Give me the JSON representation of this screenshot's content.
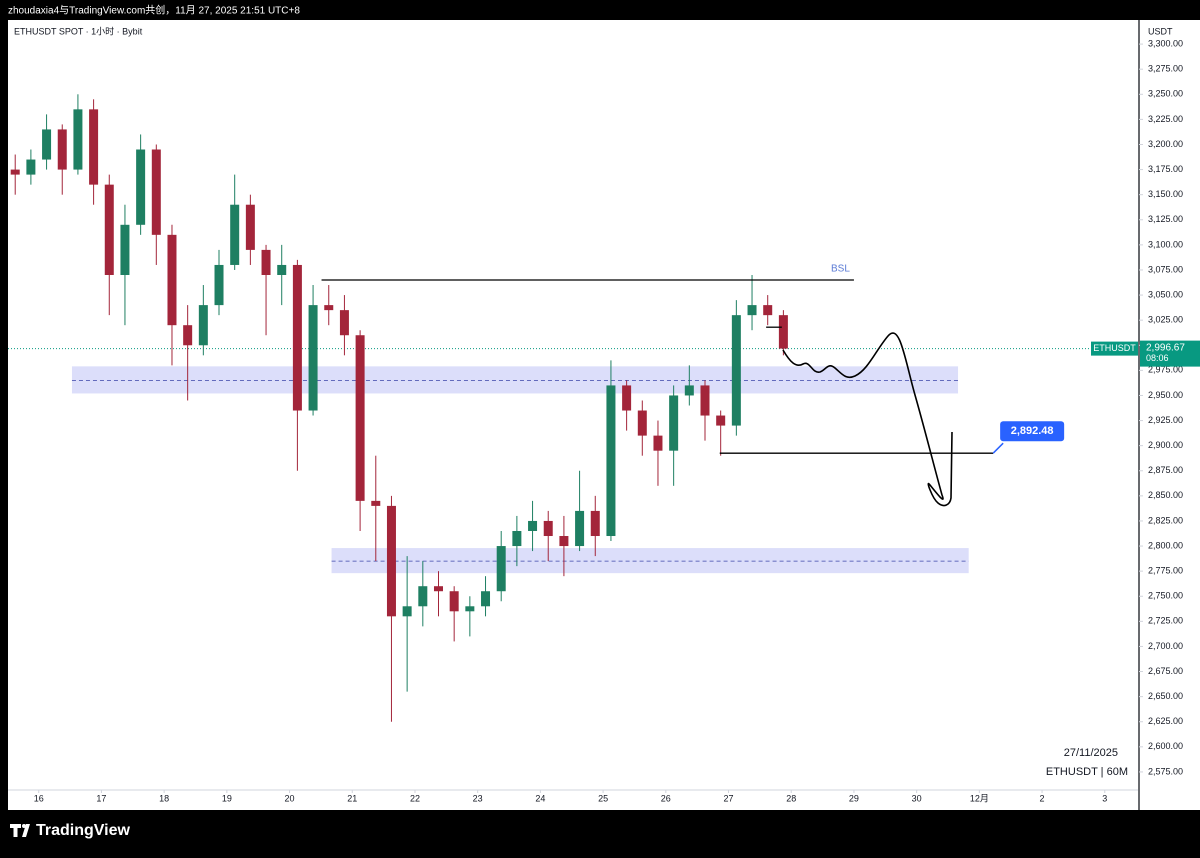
{
  "header": {
    "text": "zhoudaxia4与TradingView.com共创，11月 27, 2025 21:51 UTC+8"
  },
  "footer": {
    "brand": "TradingView"
  },
  "chart_data": {
    "type": "candlestick",
    "title": "ETHUSDT SPOT · 1小时 · Bybit",
    "y_axis_label": "USDT",
    "watermark_date": "27/11/2025",
    "watermark_symbol": "ETHUSDT | 60M",
    "up_color": "#1e7f62",
    "down_color": "#a3253a",
    "x": [
      15.625,
      15.875,
      16.125,
      16.375,
      16.625,
      16.875,
      17.125,
      17.375,
      17.625,
      17.875,
      18.125,
      18.375,
      18.625,
      18.875,
      19.125,
      19.375,
      19.625,
      19.875,
      20.125,
      20.375,
      20.625,
      20.875,
      21.125,
      21.375,
      21.625,
      21.875,
      22.125,
      22.375,
      22.625,
      22.875,
      23.125,
      23.375,
      23.625,
      23.875,
      24.125,
      24.375,
      24.625,
      24.875,
      25.125,
      25.375,
      25.625,
      25.875,
      26.125,
      26.375,
      26.625,
      26.875,
      27.125,
      27.375,
      27.625,
      27.875
    ],
    "open": [
      3175,
      3170,
      3185,
      3215,
      3175,
      3235,
      3160,
      3070,
      3120,
      3195,
      3110,
      3020,
      3000,
      3040,
      3080,
      3140,
      3095,
      3070,
      3080,
      2935,
      3040,
      3035,
      3010,
      2845,
      2840,
      2730,
      2740,
      2760,
      2755,
      2735,
      2740,
      2755,
      2800,
      2815,
      2825,
      2810,
      2800,
      2835,
      2810,
      2960,
      2935,
      2910,
      2895,
      2950,
      2960,
      2930,
      2920,
      3030,
      3040,
      3030
    ],
    "high": [
      3190,
      3195,
      3230,
      3220,
      3250,
      3245,
      3170,
      3140,
      3210,
      3200,
      3120,
      3040,
      3060,
      3095,
      3170,
      3150,
      3100,
      3100,
      3085,
      3060,
      3060,
      3050,
      3015,
      2890,
      2850,
      2790,
      2785,
      2775,
      2760,
      2750,
      2770,
      2815,
      2830,
      2845,
      2835,
      2830,
      2875,
      2850,
      2985,
      2965,
      2945,
      2925,
      2960,
      2980,
      2965,
      2935,
      3045,
      3070,
      3050,
      3035
    ],
    "low": [
      3150,
      3160,
      3175,
      3150,
      3170,
      3140,
      3030,
      3020,
      3110,
      3080,
      2980,
      2945,
      2990,
      3030,
      3075,
      3080,
      3010,
      3040,
      2875,
      2930,
      3020,
      2990,
      2815,
      2785,
      2625,
      2655,
      2720,
      2730,
      2705,
      2710,
      2730,
      2745,
      2780,
      2795,
      2785,
      2770,
      2795,
      2790,
      2805,
      2915,
      2890,
      2860,
      2860,
      2940,
      2905,
      2890,
      2910,
      3015,
      3020,
      2990
    ],
    "close": [
      3170,
      3185,
      3215,
      3175,
      3235,
      3160,
      3070,
      3120,
      3195,
      3110,
      3020,
      3000,
      3040,
      3080,
      3140,
      3095,
      3070,
      3080,
      2935,
      3040,
      3035,
      3010,
      2845,
      2840,
      2730,
      2740,
      2760,
      2755,
      2735,
      2740,
      2755,
      2800,
      2815,
      2825,
      2810,
      2800,
      2835,
      2810,
      2960,
      2935,
      2910,
      2895,
      2950,
      2960,
      2930,
      2920,
      3030,
      3040,
      3030,
      2996.67
    ],
    "xlim": [
      15.51,
      33.53
    ],
    "ylim": [
      2557,
      3324
    ],
    "xticks": [
      16,
      17,
      18,
      19,
      20,
      21,
      22,
      23,
      24,
      25,
      26,
      27,
      28,
      29,
      30,
      {
        "value": 31,
        "label": "12月"
      },
      {
        "value": 32,
        "label": "2"
      },
      {
        "value": 33,
        "label": "3"
      }
    ],
    "yticks": [
      {
        "value": 2575,
        "label": "2,575.00"
      },
      {
        "value": 2600,
        "label": "2,600.00"
      },
      {
        "value": 2625,
        "label": "2,625.00"
      },
      {
        "value": 2650,
        "label": "2,650.00"
      },
      {
        "value": 2675,
        "label": "2,675.00"
      },
      {
        "value": 2700,
        "label": "2,700.00"
      },
      {
        "value": 2725,
        "label": "2,725.00"
      },
      {
        "value": 2750,
        "label": "2,750.00"
      },
      {
        "value": 2775,
        "label": "2,775.00"
      },
      {
        "value": 2800,
        "label": "2,800.00"
      },
      {
        "value": 2825,
        "label": "2,825.00"
      },
      {
        "value": 2850,
        "label": "2,850.00"
      },
      {
        "value": 2875,
        "label": "2,875.00"
      },
      {
        "value": 2900,
        "label": "2,900.00"
      },
      {
        "value": 2925,
        "label": "2,925.00"
      },
      {
        "value": 2950,
        "label": "2,950.00"
      },
      {
        "value": 2975,
        "label": "2,975.00"
      },
      {
        "value": 3000,
        "label": "3,000.00"
      },
      {
        "value": 3025,
        "label": "3,025.00"
      },
      {
        "value": 3050,
        "label": "3,050.00"
      },
      {
        "value": 3075,
        "label": "3,075.00"
      },
      {
        "value": 3100,
        "label": "3,100.00"
      },
      {
        "value": 3125,
        "label": "3,125.00"
      },
      {
        "value": 3150,
        "label": "3,150.00"
      },
      {
        "value": 3175,
        "label": "3,175.00"
      },
      {
        "value": 3200,
        "label": "3,200.00"
      },
      {
        "value": 3225,
        "label": "3,225.00"
      },
      {
        "value": 3250,
        "label": "3,250.00"
      },
      {
        "value": 3275,
        "label": "3,275.00"
      },
      {
        "value": 3300,
        "label": "3,300.00"
      }
    ],
    "grid": false,
    "zones": [
      {
        "low": 2952,
        "high": 2979,
        "mid": 2965,
        "from": 16.53,
        "to": 30.66,
        "color": "#c9cdf7"
      },
      {
        "low": 2773,
        "high": 2798,
        "mid": 2785,
        "from": 20.67,
        "to": 30.83,
        "color": "#c9cdf7"
      }
    ],
    "levels": [
      {
        "label": "BSL",
        "value": 3065,
        "from": 20.51,
        "to": 29.0
      },
      {
        "value": 3018,
        "from": 27.6,
        "to": 27.85
      }
    ],
    "target": {
      "value": 2892.48,
      "label": "2,892.48",
      "from": 26.86,
      "to": 31.22,
      "color": "#2962ff"
    },
    "last_price": {
      "value": 2996.67,
      "label": "2,996.67",
      "countdown": "08:06",
      "symbol": "ETHUSDT",
      "color": "#089981"
    }
  }
}
